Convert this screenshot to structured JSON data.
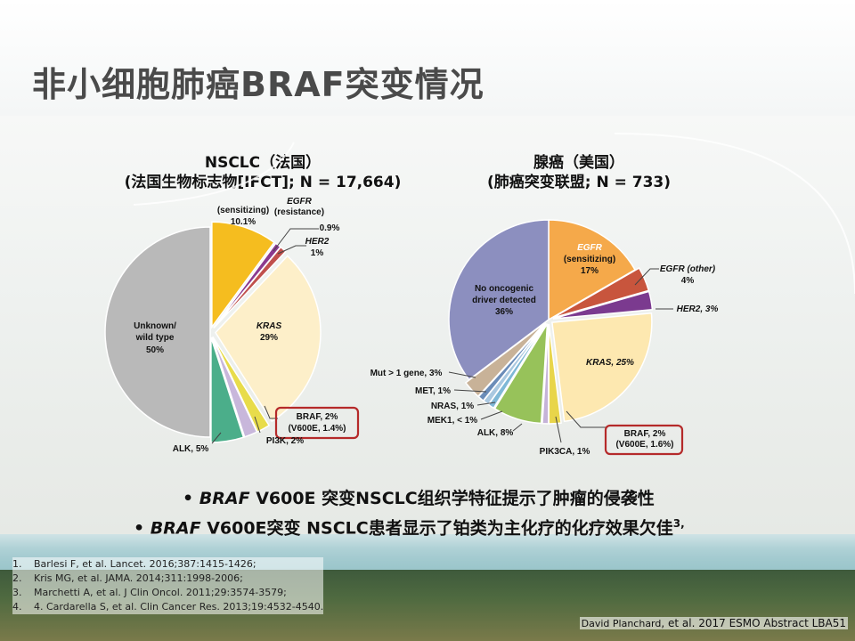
{
  "slide": {
    "title": "非小细胞肺癌BRAF突变情况",
    "left_chart_title_1": "NSCLC（法国）",
    "left_chart_title_2": "(法国生物标志物[IFCT]; N = 17,664)",
    "right_chart_title_1": "腺癌（美国）",
    "right_chart_title_2": "(肺癌突变联盟; N = 733)",
    "bullets": [
      {
        "bullet": "•",
        "italic": "BRAF",
        "text": " V600E 突变NSCLC组织学特征提示了肿瘤的侵袭性"
      },
      {
        "bullet": "•",
        "italic": "BRAF",
        "text": " V600E突变 NSCLC患者显示了铂类为主化疗的化疗效果欠佳",
        "sup": "3,"
      }
    ],
    "references": [
      {
        "n": "1.",
        "text": "Barlesi F, et al. Lancet. 2016;387:1415-1426;"
      },
      {
        "n": "2.",
        "text": "Kris MG, et al. JAMA. 2014;311:1998-2006;"
      },
      {
        "n": "3.",
        "text": "Marchetti A, et al. J Clin Oncol. 2011;29:3574-3579;"
      },
      {
        "n": "4.",
        "text": "4. Cardarella S, et al. Clin Cancer Res. 2013;19:4532-4540."
      }
    ],
    "credit_a": "David Planchard",
    "credit_b": ", et al.",
    "credit_c": " 2017 ESMO Abstract LBA51"
  },
  "chart_data": [
    {
      "type": "pie",
      "title": "NSCLC（法国）",
      "subtitle": "(法国生物标志物[IFCT]; N = 17,664)",
      "slices": [
        {
          "label": "EGFR (sensitizing) 10.1%",
          "value": 10.1,
          "color": "#f5bd1f",
          "explode": 1
        },
        {
          "label": "EGFR (resistance) 0.9%",
          "value": 0.9,
          "color": "#8b3a8f",
          "explode": 1
        },
        {
          "label": "HER2 1%",
          "value": 1.0,
          "color": "#c0504d",
          "explode": 1
        },
        {
          "label": "KRAS 29%",
          "value": 29.0,
          "color": "#fdefc9",
          "explode": 1
        },
        {
          "label": "BRAF, 2% (V600E, 1.4%)",
          "value": 2.0,
          "color": "#e8dc4a",
          "explode": 1
        },
        {
          "label": "PI3K, 2%",
          "value": 2.0,
          "color": "#c8b7db",
          "explode": 1
        },
        {
          "label": "ALK, 5%",
          "value": 5.0,
          "color": "#4bae8a",
          "explode": 1
        },
        {
          "label": "Unknown/ wild type 50%",
          "value": 50.0,
          "color": "#b9b9b9",
          "explode": 0
        }
      ]
    },
    {
      "type": "pie",
      "title": "腺癌（美国）",
      "subtitle": "(肺癌突变联盟; N = 733)",
      "slices": [
        {
          "label": "EGFR (sensitizing) 17%",
          "value": 17,
          "color": "#f5a94a",
          "explode": 0
        },
        {
          "label": "EGFR (other) 4%",
          "value": 4,
          "color": "#c8553d",
          "explode": 1
        },
        {
          "label": "HER2, 3%",
          "value": 3,
          "color": "#7b3a8f",
          "explode": 1
        },
        {
          "label": "KRAS, 25%",
          "value": 25,
          "color": "#fde8b0",
          "explode": 1
        },
        {
          "label": "BRAF, 2% (V600E, 1.6%)",
          "value": 2,
          "color": "#e8d54a",
          "explode": 1
        },
        {
          "label": "PIK3CA, 1%",
          "value": 1,
          "color": "#c5b3d8",
          "explode": 1
        },
        {
          "label": "ALK, 8%",
          "value": 8,
          "color": "#97c25a",
          "explode": 1
        },
        {
          "label": "MEK1, < 1%",
          "value": 1,
          "color": "#7fb8d6",
          "explode": 1
        },
        {
          "label": "NRAS, 1%",
          "value": 1,
          "color": "#a9c8e0",
          "explode": 1
        },
        {
          "label": "MET, 1%",
          "value": 1,
          "color": "#6a8cb8",
          "explode": 1
        },
        {
          "label": "Mut > 1 gene, 3%",
          "value": 3,
          "color": "#c8b298",
          "explode": 1
        },
        {
          "label": "No oncogenic driver detected 36%",
          "value": 36,
          "color": "#8c8fbf",
          "explode": 0
        }
      ]
    }
  ],
  "labels": {
    "l_egfr_sens": "(sensitizing)",
    "l_egfr_sens_val": "10.1%",
    "l_egfr_res_1": "EGFR",
    "l_egfr_res_2": "(resistance)",
    "l_egfr_res_val": "0.9%",
    "l_her2": "HER2",
    "l_her2_val": "1%",
    "l_kras": "KRAS",
    "l_kras_val": "29%",
    "l_braf_1": "BRAF, 2%",
    "l_braf_2": "(V600E, 1.4%)",
    "l_pi3k": "PI3K, 2%",
    "l_alk": "ALK, 5%",
    "l_unknown_1": "Unknown/",
    "l_unknown_2": "wild type",
    "l_unknown_3": "50%",
    "r_egfr_1": "EGFR",
    "r_egfr_2": "(sensitizing)",
    "r_egfr_3": "17%",
    "r_egfr_other_1": "EGFR (other)",
    "r_egfr_other_2": "4%",
    "r_her2": "HER2, 3%",
    "r_kras": "KRAS, 25%",
    "r_braf_1": "BRAF, 2%",
    "r_braf_2": "(V600E, 1.6%)",
    "r_pik3ca": "PIK3CA, 1%",
    "r_alk": "ALK, 8%",
    "r_mek1": "MEK1, < 1%",
    "r_nras": "NRAS, 1%",
    "r_met": "MET, 1%",
    "r_mut": "Mut > 1 gene, 3%",
    "r_nodriver_1": "No oncogenic",
    "r_nodriver_2": "driver detected",
    "r_nodriver_3": "36%"
  }
}
